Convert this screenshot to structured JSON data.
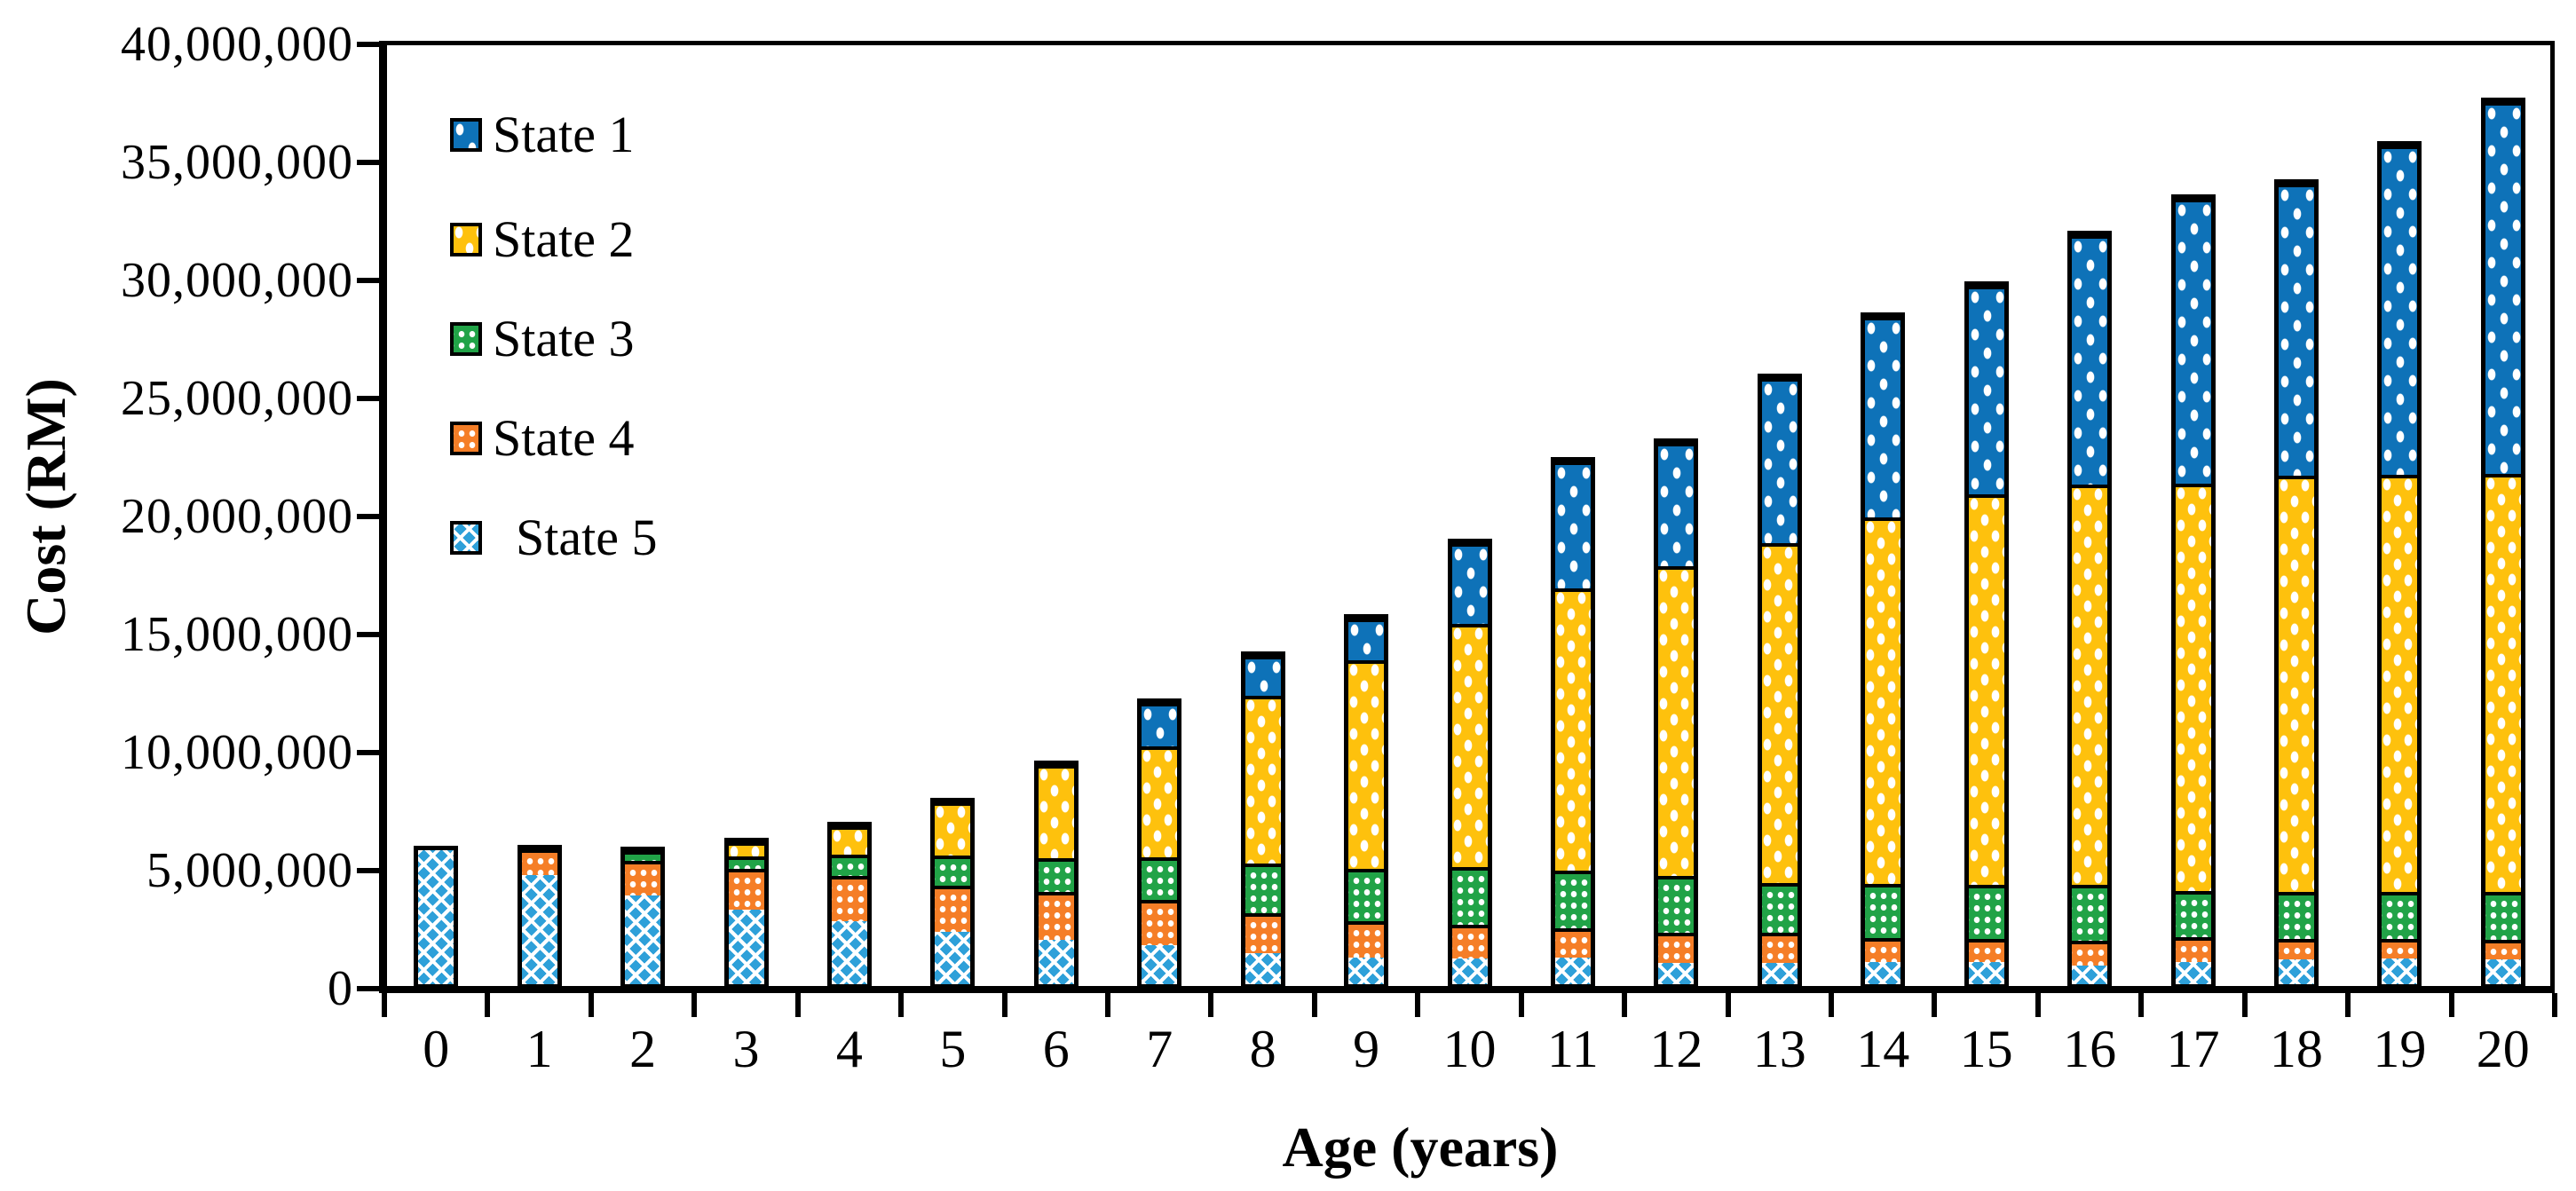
{
  "figure": {
    "x_axis_title": "Age (years)",
    "y_axis_title": "Cost (RM)"
  },
  "chart_data": {
    "type": "bar",
    "stacked": true,
    "title": "",
    "xlabel": "Age (years)",
    "ylabel": "Cost (RM)",
    "ylim": [
      0,
      40000000
    ],
    "ytick_step": 5000000,
    "ytick_labels_top_to_bottom": [
      "40,000,000",
      "35,000,000",
      "30,000,000",
      "25,000,000",
      "20,000,000",
      "15,000,000",
      "10,000,000",
      "5,000,000",
      "0"
    ],
    "categories": [
      "0",
      "1",
      "2",
      "3",
      "4",
      "5",
      "6",
      "7",
      "8",
      "9",
      "10",
      "11",
      "12",
      "13",
      "14",
      "15",
      "16",
      "17",
      "18",
      "19",
      "20"
    ],
    "grid": false,
    "legend_position": "top-left-inside",
    "legend_order": [
      "State 1",
      "State 2",
      "State 3",
      "State 4",
      "State 5"
    ],
    "stack_order_bottom_to_top": [
      "State 5",
      "State 4",
      "State 3",
      "State 2",
      "State 1"
    ],
    "series": [
      {
        "name": "State 1",
        "color": "#0E72B8",
        "pattern": "sparse-white-dots",
        "values": [
          0,
          0,
          0,
          0,
          0,
          0,
          0,
          1900000,
          1750000,
          1800000,
          3500000,
          5450000,
          5300000,
          7100000,
          8600000,
          8950000,
          10700000,
          12200000,
          12500000,
          14100000,
          15900000
        ]
      },
      {
        "name": "State 2",
        "color": "#FEC10D",
        "pattern": "sparse-white-dots",
        "values": [
          0,
          0,
          0,
          650000,
          1250000,
          2350000,
          4100000,
          4850000,
          7300000,
          9050000,
          10500000,
          12150000,
          13350000,
          14600000,
          15750000,
          16750000,
          17150000,
          17450000,
          17850000,
          17850000,
          17900000
        ]
      },
      {
        "name": "State 3",
        "color": "#21A347",
        "pattern": "grid-white-dots",
        "values": [
          0,
          0,
          450000,
          550000,
          950000,
          1350000,
          1500000,
          1850000,
          2150000,
          2250000,
          2500000,
          2500000,
          2450000,
          2150000,
          2300000,
          2300000,
          2400000,
          2000000,
          2000000,
          2000000,
          2050000
        ]
      },
      {
        "name": "State 4",
        "color": "#F57E27",
        "pattern": "grid-white-dots",
        "values": [
          0,
          1150000,
          1550000,
          1850000,
          2050000,
          2050000,
          2100000,
          2000000,
          1750000,
          1600000,
          1450000,
          1250000,
          1300000,
          1300000,
          1050000,
          1000000,
          1050000,
          1050000,
          900000,
          850000,
          850000
        ]
      },
      {
        "name": "State 5",
        "color": "#2EA0D9",
        "pattern": "diagonal-white-checker",
        "values": [
          6050000,
          4950000,
          4000000,
          3350000,
          2800000,
          2350000,
          1950000,
          1700000,
          1350000,
          1150000,
          1100000,
          1150000,
          900000,
          900000,
          950000,
          950000,
          800000,
          950000,
          1050000,
          1100000,
          1050000
        ]
      }
    ]
  }
}
